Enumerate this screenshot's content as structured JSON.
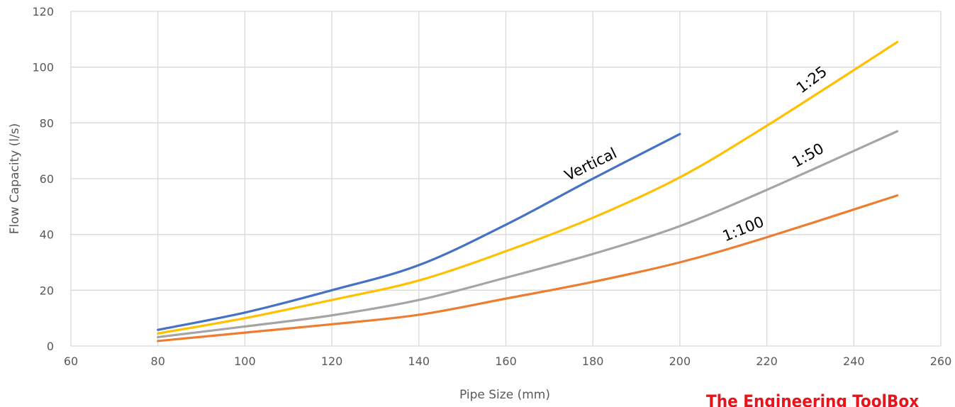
{
  "chart_data": {
    "type": "line",
    "xlabel": "Pipe Size (mm)",
    "ylabel": "Flow Capacity (l/s)",
    "xlim": [
      60,
      260
    ],
    "ylim": [
      0,
      120
    ],
    "x_ticks": [
      "60",
      "80",
      "100",
      "120",
      "140",
      "160",
      "180",
      "200",
      "220",
      "240",
      "260"
    ],
    "y_ticks": [
      "0",
      "20",
      "40",
      "60",
      "80",
      "100",
      "120"
    ],
    "grid": true,
    "series": [
      {
        "name": "Vertical",
        "color": "#4472c4",
        "x": [
          80,
          100,
          120,
          140,
          160,
          180,
          200
        ],
        "y": [
          5.8,
          12,
          20,
          29,
          43.5,
          60,
          76
        ]
      },
      {
        "name": "1:25",
        "color": "#ffc000",
        "x": [
          80,
          100,
          120,
          140,
          160,
          180,
          200,
          220,
          250
        ],
        "y": [
          4.5,
          10,
          16.5,
          23.5,
          34,
          46,
          60.5,
          79,
          109
        ]
      },
      {
        "name": "1:50",
        "color": "#a5a5a5",
        "x": [
          80,
          100,
          120,
          140,
          160,
          180,
          200,
          220,
          250
        ],
        "y": [
          3.2,
          7,
          11,
          16.5,
          24.5,
          33,
          43,
          56,
          77
        ]
      },
      {
        "name": "1:100",
        "color": "#ed7d31",
        "x": [
          80,
          100,
          120,
          140,
          160,
          180,
          200,
          220,
          250
        ],
        "y": [
          1.8,
          4.8,
          7.8,
          11.2,
          17,
          23,
          30,
          39,
          54
        ]
      }
    ]
  },
  "watermark": "The Engineering ToolBox"
}
